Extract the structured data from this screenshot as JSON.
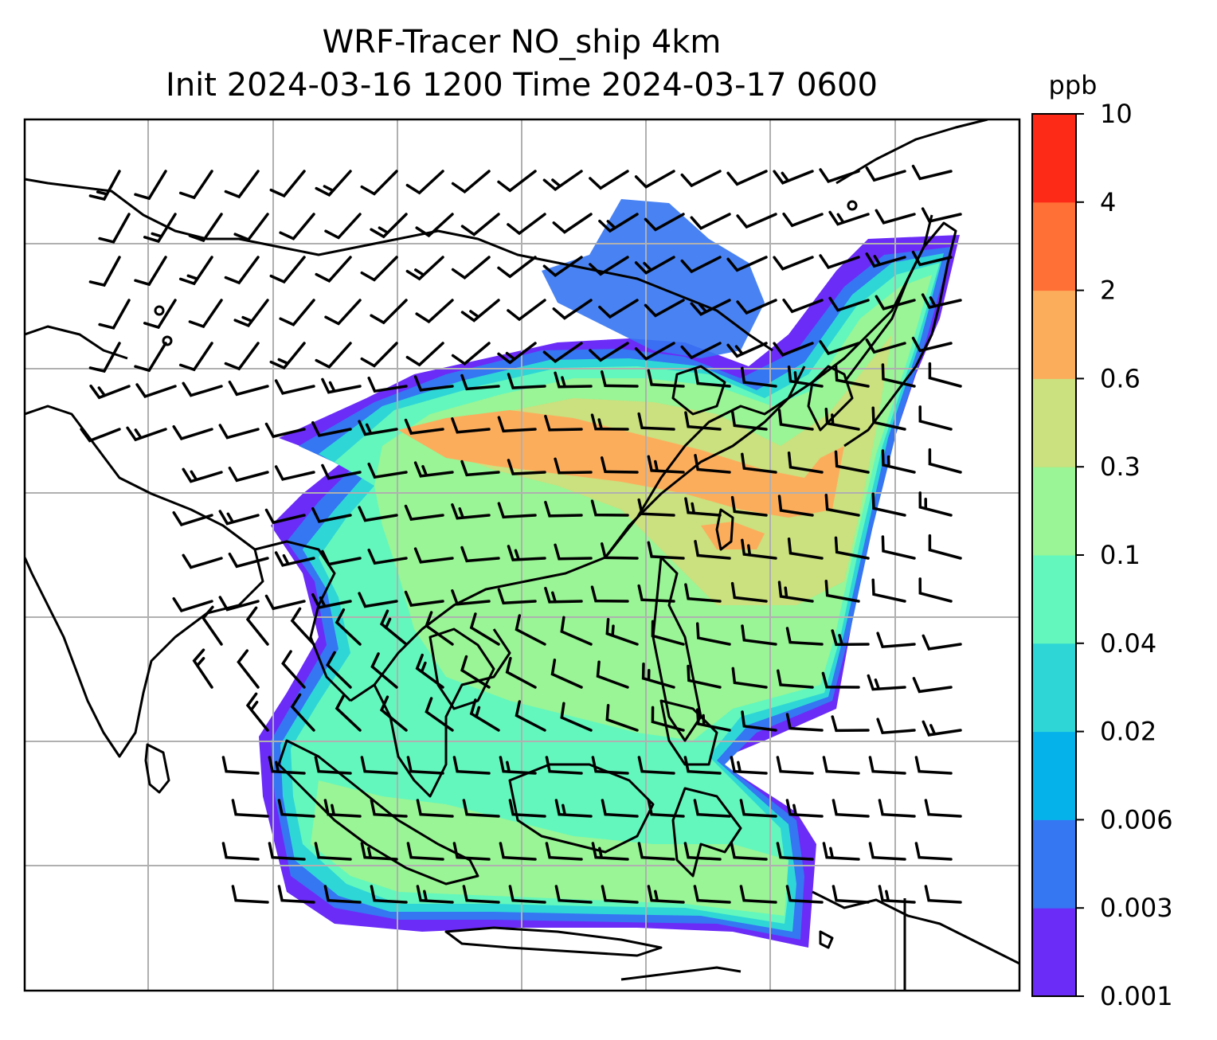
{
  "title": {
    "line1": "WRF-Tracer NO_ship 4km",
    "line2": "Init 2024-03-16 1200 Time 2024-03-17 0600"
  },
  "colorbar": {
    "unit": "ppb",
    "levels": [
      "0.001",
      "0.003",
      "0.006",
      "0.02",
      "0.04",
      "0.1",
      "0.3",
      "0.6",
      "2",
      "4",
      "10"
    ],
    "colors": [
      "#6b2cf7",
      "#3576f2",
      "#06b2ea",
      "#2ed6d6",
      "#63f7bd",
      "#99f595",
      "#cbe07e",
      "#fcad5c",
      "#ff7036",
      "#fc2a17"
    ]
  },
  "map": {
    "field": "NO_ship tracer concentration",
    "overlays": [
      "wind-barbs",
      "coastlines",
      "gridlines"
    ]
  }
}
